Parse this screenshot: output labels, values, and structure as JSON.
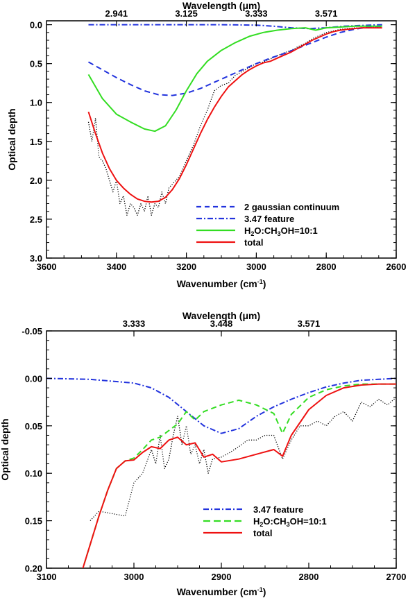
{
  "chart_data": [
    {
      "type": "line",
      "xlabel": "Wavenumber (cm",
      "xlabel_sup": "-1",
      "xlabel_end": ")",
      "ylabel": "Optical depth",
      "top_label": "Wavelength (",
      "top_label_mu": "μ",
      "top_label_end": "m)",
      "xlim": [
        3600,
        2600
      ],
      "ylim": [
        3.0,
        -0.05
      ],
      "y_reversed": true,
      "x_ticks": [
        3600,
        3400,
        3200,
        3000,
        2800,
        2600
      ],
      "x_ticks_labels": [
        "3600",
        "3400",
        "3200",
        "3000",
        "2800",
        "2600"
      ],
      "y_ticks": [
        0.0,
        0.5,
        1.0,
        1.5,
        2.0,
        2.5,
        3.0
      ],
      "y_ticks_labels": [
        "0.0",
        "0.5",
        "1.0",
        "1.5",
        "2.0",
        "2.5",
        "3.0"
      ],
      "top_ticks": [
        3400,
        3200,
        3000,
        2800
      ],
      "top_ticks_labels": [
        "2.941",
        "3.125",
        "3.333",
        "3.571"
      ],
      "legend_position": "bottom-right",
      "series": [
        {
          "name": "2 gaussian continuum",
          "style": "dashed",
          "color": "#2233dd",
          "x": [
            3480,
            3440,
            3400,
            3360,
            3320,
            3280,
            3240,
            3200,
            3160,
            3120,
            3080,
            3040,
            3000,
            2960,
            2920,
            2880,
            2840,
            2800,
            2760,
            2720,
            2680,
            2640
          ],
          "y": [
            0.48,
            0.58,
            0.68,
            0.77,
            0.85,
            0.9,
            0.91,
            0.88,
            0.82,
            0.74,
            0.66,
            0.58,
            0.5,
            0.43,
            0.37,
            0.3,
            0.23,
            0.16,
            0.1,
            0.06,
            0.03,
            0.02
          ]
        },
        {
          "name": "3.47 feature",
          "style": "dashdot",
          "color": "#2233dd",
          "x": [
            3480,
            3300,
            3100,
            3000,
            2950,
            2900,
            2850,
            2800,
            2750,
            2700,
            2640
          ],
          "y": [
            0.0,
            0.0,
            0.0,
            0.005,
            0.02,
            0.04,
            0.05,
            0.04,
            0.02,
            0.01,
            0.0
          ]
        },
        {
          "name": "H2O:CH3OH=10:1",
          "style": "solid",
          "color": "#33dd22",
          "x": [
            3480,
            3440,
            3400,
            3360,
            3320,
            3290,
            3260,
            3230,
            3200,
            3170,
            3140,
            3100,
            3060,
            3020,
            2980,
            2940,
            2900,
            2860,
            2830,
            2800,
            2760,
            2720,
            2680,
            2640
          ],
          "y": [
            0.64,
            0.95,
            1.15,
            1.25,
            1.34,
            1.37,
            1.3,
            1.1,
            0.85,
            0.63,
            0.47,
            0.33,
            0.23,
            0.15,
            0.1,
            0.07,
            0.05,
            0.04,
            0.07,
            0.04,
            0.03,
            0.02,
            0.02,
            0.02
          ]
        },
        {
          "name": "total",
          "style": "solid",
          "color": "#ee1111",
          "x": [
            3480,
            3460,
            3440,
            3420,
            3400,
            3380,
            3360,
            3340,
            3320,
            3300,
            3280,
            3260,
            3240,
            3220,
            3200,
            3180,
            3160,
            3140,
            3120,
            3100,
            3080,
            3060,
            3040,
            3020,
            3000,
            2980,
            2960,
            2940,
            2920,
            2900,
            2880,
            2860,
            2840,
            2820,
            2800,
            2780,
            2760,
            2740,
            2720,
            2700,
            2680,
            2660,
            2640
          ],
          "y": [
            1.12,
            1.4,
            1.65,
            1.85,
            2.0,
            2.1,
            2.18,
            2.24,
            2.27,
            2.28,
            2.27,
            2.22,
            2.12,
            1.98,
            1.8,
            1.6,
            1.4,
            1.22,
            1.06,
            0.92,
            0.8,
            0.72,
            0.64,
            0.58,
            0.53,
            0.49,
            0.47,
            0.43,
            0.39,
            0.35,
            0.3,
            0.25,
            0.2,
            0.16,
            0.12,
            0.09,
            0.07,
            0.06,
            0.05,
            0.04,
            0.04,
            0.04,
            0.04
          ]
        },
        {
          "name": "",
          "style": "dotted",
          "color": "#000000",
          "x": [
            3480,
            3470,
            3460,
            3450,
            3440,
            3430,
            3420,
            3410,
            3400,
            3390,
            3380,
            3370,
            3360,
            3350,
            3340,
            3330,
            3320,
            3310,
            3300,
            3290,
            3280,
            3270,
            3260,
            3250,
            3240,
            3230,
            3220,
            3210,
            3200,
            3180,
            3160,
            3140,
            3120,
            3100,
            3080,
            3060,
            3040,
            3020,
            3000,
            2980,
            2960,
            2940,
            2920,
            2900,
            2880,
            2860,
            2840,
            2820,
            2800,
            2780,
            2760,
            2740,
            2720,
            2700,
            2680,
            2660,
            2640
          ],
          "y": [
            1.25,
            1.5,
            1.2,
            1.7,
            1.75,
            1.85,
            2.0,
            2.15,
            2.0,
            2.3,
            2.2,
            2.45,
            2.3,
            2.35,
            2.45,
            2.3,
            2.4,
            2.2,
            2.45,
            2.3,
            2.35,
            2.15,
            2.3,
            2.1,
            2.05,
            2.0,
            1.95,
            1.85,
            1.75,
            1.55,
            1.3,
            1.1,
            0.85,
            0.78,
            0.75,
            0.65,
            0.6,
            0.55,
            0.5,
            0.48,
            0.44,
            0.4,
            0.36,
            0.33,
            0.28,
            0.24,
            0.18,
            0.14,
            0.1,
            0.08,
            0.06,
            0.05,
            0.04,
            0.04,
            0.03,
            0.03,
            0.03
          ]
        }
      ]
    },
    {
      "type": "line",
      "xlabel": "Wavenumber (cm",
      "xlabel_sup": "-1",
      "xlabel_end": ")",
      "ylabel": "Optical depth",
      "top_label": "Wavelength (",
      "top_label_mu": "μ",
      "top_label_end": "m)",
      "xlim": [
        3100,
        2700
      ],
      "ylim": [
        0.2,
        -0.05
      ],
      "y_reversed": true,
      "x_ticks": [
        3100,
        3000,
        2900,
        2800,
        2700
      ],
      "x_ticks_labels": [
        "3100",
        "3000",
        "2900",
        "2800",
        "2700"
      ],
      "y_ticks": [
        -0.05,
        0.0,
        0.05,
        0.1,
        0.15,
        0.2
      ],
      "y_ticks_labels": [
        "-0.05",
        "0.00",
        "0.05",
        "0.10",
        "0.15",
        "0.20"
      ],
      "top_ticks": [
        3000,
        2900,
        2800
      ],
      "top_ticks_labels": [
        "3.333",
        "3.448",
        "3.571"
      ],
      "legend_position": "bottom-center",
      "series": [
        {
          "name": "3.47 feature",
          "style": "dashdot",
          "color": "#2233dd",
          "x": [
            3100,
            3050,
            3000,
            2980,
            2960,
            2940,
            2920,
            2900,
            2880,
            2860,
            2840,
            2820,
            2800,
            2780,
            2760,
            2740,
            2720,
            2700
          ],
          "y": [
            0.0,
            0.001,
            0.005,
            0.01,
            0.02,
            0.035,
            0.05,
            0.058,
            0.053,
            0.04,
            0.03,
            0.022,
            0.015,
            0.009,
            0.005,
            0.002,
            0.001,
            0.0
          ]
        },
        {
          "name": "H2O:CH3OH=10:1",
          "style": "dashed",
          "color": "#33dd22",
          "x": [
            3060,
            3050,
            3040,
            3030,
            3020,
            3010,
            3000,
            2990,
            2980,
            2970,
            2960,
            2950,
            2940,
            2930,
            2920,
            2900,
            2880,
            2860,
            2840,
            2830,
            2820,
            2800,
            2780,
            2760,
            2740,
            2720,
            2700
          ],
          "y": [
            0.205,
            0.175,
            0.145,
            0.118,
            0.095,
            0.087,
            0.084,
            0.075,
            0.065,
            0.062,
            0.055,
            0.048,
            0.035,
            0.044,
            0.035,
            0.028,
            0.023,
            0.028,
            0.037,
            0.058,
            0.038,
            0.02,
            0.012,
            0.008,
            0.006,
            0.006,
            0.006
          ]
        },
        {
          "name": "total",
          "style": "solid",
          "color": "#ee1111",
          "x": [
            3060,
            3050,
            3040,
            3030,
            3020,
            3010,
            3000,
            2990,
            2980,
            2970,
            2960,
            2950,
            2940,
            2930,
            2920,
            2910,
            2900,
            2880,
            2860,
            2840,
            2830,
            2820,
            2800,
            2780,
            2760,
            2740,
            2720,
            2700
          ],
          "y": [
            0.205,
            0.175,
            0.145,
            0.118,
            0.095,
            0.087,
            0.086,
            0.078,
            0.072,
            0.074,
            0.065,
            0.062,
            0.07,
            0.068,
            0.083,
            0.08,
            0.088,
            0.085,
            0.08,
            0.075,
            0.082,
            0.06,
            0.033,
            0.018,
            0.01,
            0.007,
            0.006,
            0.006
          ]
        },
        {
          "name": "",
          "style": "dotted",
          "color": "#000000",
          "x": [
            3050,
            3040,
            3010,
            3000,
            2990,
            2980,
            2975,
            2970,
            2965,
            2960,
            2955,
            2950,
            2945,
            2940,
            2935,
            2930,
            2925,
            2920,
            2915,
            2910,
            2900,
            2890,
            2880,
            2870,
            2860,
            2850,
            2840,
            2830,
            2820,
            2810,
            2800,
            2790,
            2780,
            2770,
            2760,
            2750,
            2740,
            2730,
            2720,
            2710,
            2700
          ],
          "y": [
            0.15,
            0.14,
            0.145,
            0.11,
            0.1,
            0.075,
            0.09,
            0.06,
            0.095,
            0.085,
            0.06,
            0.04,
            0.07,
            0.05,
            0.08,
            0.07,
            0.09,
            0.075,
            0.1,
            0.085,
            0.083,
            0.078,
            0.072,
            0.065,
            0.065,
            0.06,
            0.06,
            0.085,
            0.065,
            0.05,
            0.05,
            0.045,
            0.05,
            0.04,
            0.035,
            0.045,
            0.025,
            0.03,
            0.022,
            0.028,
            0.02
          ]
        }
      ]
    }
  ],
  "legend": {
    "top": [
      {
        "label": "2 gaussian continuum"
      },
      {
        "label": "3.47 feature"
      },
      {
        "label_parts": [
          "H",
          "2",
          "O:CH",
          "3",
          "OH=10:1"
        ]
      },
      {
        "label": "total"
      }
    ],
    "bottom": [
      {
        "label": "3.47 feature"
      },
      {
        "label_parts": [
          "H",
          "2",
          "O:CH",
          "3",
          "OH=10:1"
        ]
      },
      {
        "label": "total"
      }
    ]
  },
  "colors": {
    "blue": "#2233dd",
    "green": "#33dd22",
    "red": "#ee1111",
    "black": "#000000"
  }
}
